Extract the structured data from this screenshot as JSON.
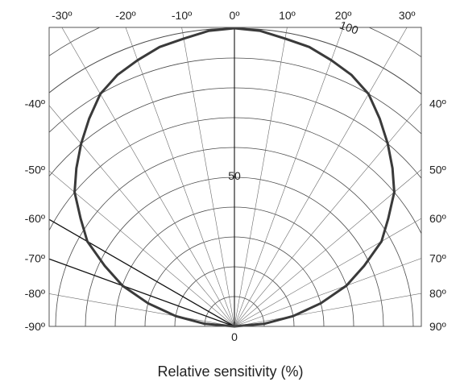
{
  "chart_data": {
    "type": "polar",
    "xlabel": "Relative sensitivity  (%)",
    "radial_range": [
      0,
      100
    ],
    "radial_ticks": [
      {
        "r": 50,
        "label": "50"
      },
      {
        "r": 100,
        "label": "100"
      }
    ],
    "center_label": "0",
    "angle_range": [
      -90,
      90
    ],
    "angle_step": 10,
    "top_angle_ticks": [
      "-30º",
      "-20º",
      "-10º",
      "0º",
      "10º",
      "20º",
      "30º"
    ],
    "left_angle_ticks": [
      "-40º",
      "-50º",
      "-60º",
      "-70º",
      "-80º",
      "-90º"
    ],
    "right_angle_ticks": [
      "40º",
      "50º",
      "60º",
      "70º",
      "80º",
      "90º"
    ],
    "grid": true,
    "highlighted_angles": [
      -60,
      -70
    ],
    "series": [
      {
        "angles": [
          -90,
          -85,
          -80,
          -75,
          -70,
          -65,
          -60,
          -55,
          -50,
          -45,
          -40,
          -35,
          -30,
          -25,
          -20,
          -15,
          -10,
          -5,
          0,
          5,
          10,
          15,
          20,
          25,
          30,
          35,
          40,
          45,
          50,
          55,
          60,
          65,
          70,
          75,
          80,
          85,
          90
        ],
        "values": [
          0,
          10,
          20,
          30,
          40,
          48,
          57,
          63,
          70,
          75,
          80,
          85,
          90,
          93,
          95,
          97,
          98,
          99.5,
          100,
          99.5,
          98,
          97,
          95,
          93,
          90,
          85,
          80,
          75,
          70,
          63,
          57,
          48,
          40,
          30,
          20,
          10,
          0
        ]
      }
    ]
  }
}
